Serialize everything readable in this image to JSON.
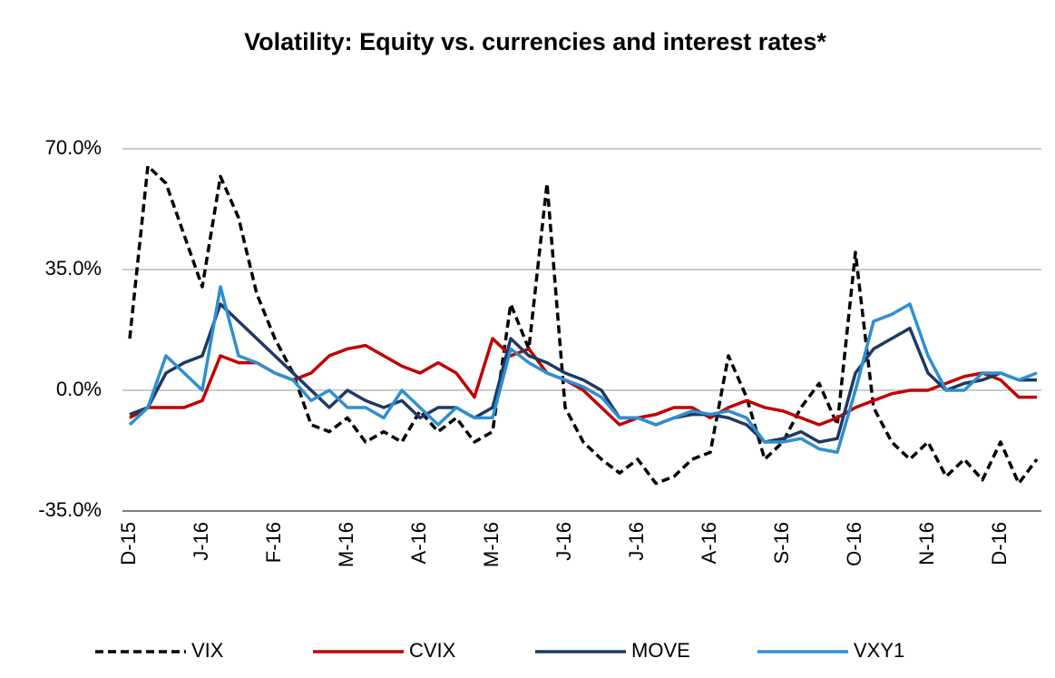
{
  "chart_data": {
    "type": "line",
    "title": "Volatility: Equity vs. currencies and interest rates*",
    "categories": [
      "D-15",
      null,
      null,
      null,
      "J-16",
      null,
      null,
      null,
      "F-16",
      null,
      null,
      null,
      "M-16",
      null,
      null,
      null,
      "A-16",
      null,
      null,
      null,
      "M-16",
      null,
      null,
      null,
      "J-16",
      null,
      null,
      null,
      "J-16",
      null,
      null,
      null,
      "A-16",
      null,
      null,
      null,
      "S-16",
      null,
      null,
      null,
      "O-16",
      null,
      null,
      null,
      "N-16",
      null,
      null,
      null,
      "D-16",
      null,
      null
    ],
    "series": [
      {
        "name": "VIX",
        "color": "#000000",
        "dashed": true,
        "values": [
          15,
          65,
          60,
          45,
          30,
          62,
          50,
          28,
          15,
          5,
          -10,
          -12,
          -8,
          -15,
          -12,
          -15,
          -6,
          -12,
          -8,
          -15,
          -12,
          25,
          12,
          60,
          -5,
          -15,
          -20,
          -24,
          -20,
          -27,
          -25,
          -20,
          -18,
          10,
          -2,
          -20,
          -15,
          -5,
          2,
          -10,
          40,
          -5,
          -15,
          -20,
          -15,
          -25,
          -20,
          -26,
          -15,
          -27,
          -20
        ]
      },
      {
        "name": "CVIX",
        "color": "#c00000",
        "values": [
          -8,
          -5,
          -5,
          -5,
          -3,
          10,
          8,
          8,
          5,
          3,
          5,
          10,
          12,
          13,
          10,
          7,
          5,
          8,
          5,
          -2,
          15,
          10,
          12,
          5,
          3,
          0,
          -5,
          -10,
          -8,
          -7,
          -5,
          -5,
          -8,
          -5,
          -3,
          -5,
          -6,
          -8,
          -10,
          -8,
          -5,
          -3,
          -1,
          0,
          0,
          2,
          4,
          5,
          3,
          -2,
          -2
        ]
      },
      {
        "name": "MOVE",
        "color": "#1f3864",
        "values": [
          -7,
          -5,
          5,
          8,
          10,
          25,
          20,
          15,
          10,
          5,
          0,
          -5,
          0,
          -3,
          -5,
          -3,
          -8,
          -5,
          -5,
          -8,
          -5,
          15,
          10,
          8,
          5,
          3,
          0,
          -8,
          -8,
          -10,
          -8,
          -7,
          -7,
          -8,
          -10,
          -15,
          -14,
          -12,
          -15,
          -14,
          5,
          12,
          15,
          18,
          5,
          0,
          2,
          3,
          5,
          3,
          3
        ]
      },
      {
        "name": "VXY1",
        "color": "#2e8fd0",
        "values": [
          -10,
          -5,
          10,
          5,
          0,
          30,
          10,
          8,
          5,
          3,
          -3,
          0,
          -5,
          -5,
          -8,
          0,
          -5,
          -10,
          -5,
          -8,
          -8,
          12,
          8,
          5,
          3,
          1,
          -2,
          -8,
          -8,
          -10,
          -8,
          -6,
          -7,
          -6,
          -8,
          -15,
          -15,
          -14,
          -17,
          -18,
          0,
          20,
          22,
          25,
          10,
          0,
          0,
          5,
          5,
          3,
          5
        ]
      }
    ],
    "ylim": [
      -35,
      80
    ],
    "yticks": [
      {
        "value": -35,
        "label": "-35.0%"
      },
      {
        "value": 0,
        "label": "0.0%"
      },
      {
        "value": 35,
        "label": "35.0%"
      },
      {
        "value": 70,
        "label": "70.0%"
      }
    ],
    "grid": true,
    "legend": "bottom"
  }
}
